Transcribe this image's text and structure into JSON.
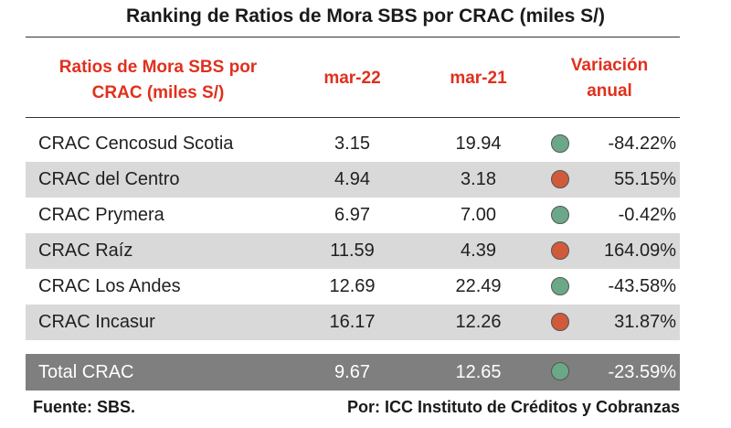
{
  "title": "Ranking de Ratios de Mora SBS por CRAC (miles S/)",
  "header": {
    "name_line1": "Ratios de Mora SBS por",
    "name_line2": "CRAC (miles S/)",
    "col1": "mar-22",
    "col2": "mar-21",
    "col3_line1": "Variación",
    "col3_line2": "anual"
  },
  "colors": {
    "header_red": "#e0301e",
    "dot_green": "#6aa888",
    "dot_red": "#d05a3a",
    "row_shade": "#d9d9d9",
    "total_bg": "#7f7f7f"
  },
  "rows": [
    {
      "name": "CRAC Cencosud Scotia",
      "mar22": "3.15",
      "mar21": "19.94",
      "status": "green",
      "variation": "-84.22%"
    },
    {
      "name": "CRAC del Centro",
      "mar22": "4.94",
      "mar21": "3.18",
      "status": "red",
      "variation": "55.15%"
    },
    {
      "name": "CRAC Prymera",
      "mar22": "6.97",
      "mar21": "7.00",
      "status": "green",
      "variation": "-0.42%"
    },
    {
      "name": "CRAC Raíz",
      "mar22": "11.59",
      "mar21": "4.39",
      "status": "red",
      "variation": "164.09%"
    },
    {
      "name": "CRAC Los Andes",
      "mar22": "12.69",
      "mar21": "22.49",
      "status": "green",
      "variation": "-43.58%"
    },
    {
      "name": "CRAC Incasur",
      "mar22": "16.17",
      "mar21": "12.26",
      "status": "red",
      "variation": "31.87%"
    }
  ],
  "total": {
    "name": "Total CRAC",
    "mar22": "9.67",
    "mar21": "12.65",
    "status": "green",
    "variation": "-23.59%"
  },
  "footer": {
    "source": "Fuente: SBS.",
    "credit": "Por: ICC Instituto de Créditos y Cobranzas"
  }
}
